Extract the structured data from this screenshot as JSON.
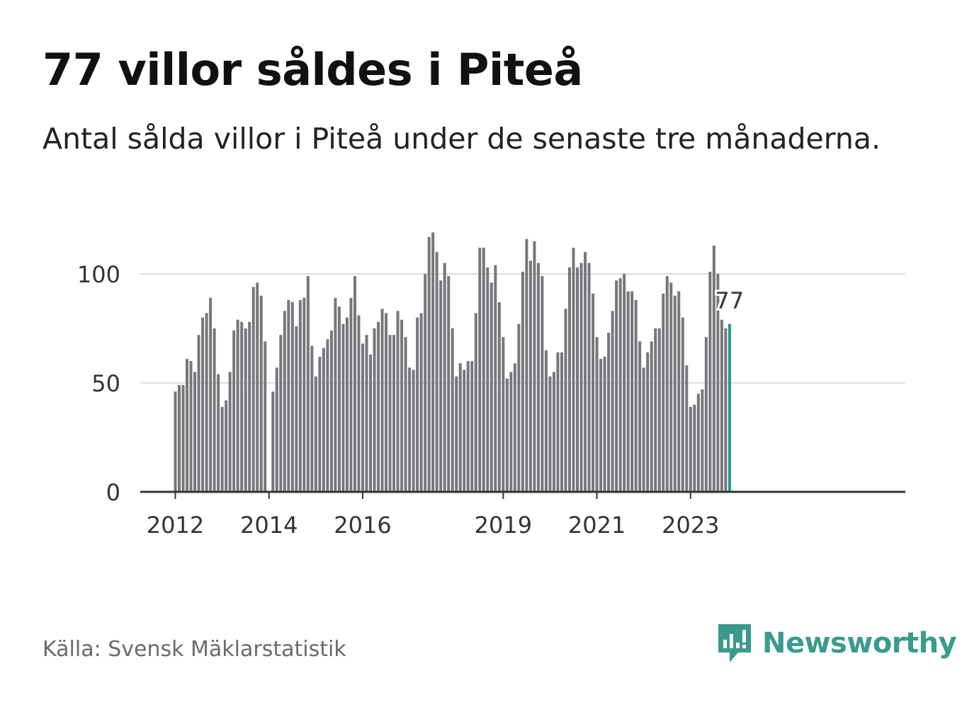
{
  "header": {
    "title": "77 villor såldes i Piteå",
    "subtitle": "Antal sålda villor i Piteå under de senaste tre månaderna."
  },
  "footer": {
    "source": "Källa: Svensk Mäklarstatistik",
    "brand": "Newsworthy"
  },
  "colors": {
    "bar": "#77767b",
    "highlight": "#1a9a8e",
    "grid": "#dddddd",
    "axis": "#333333",
    "brand": "#3a9a8f"
  },
  "chart_data": {
    "type": "bar",
    "title": "77 villor såldes i Piteå",
    "xlabel": "",
    "ylabel": "",
    "ylim": [
      0,
      125
    ],
    "yticks": [
      0,
      50,
      100
    ],
    "grid": true,
    "series": [
      {
        "name": "Antal sålda villor (rullande tre månader)",
        "start": "2012-01",
        "values": [
          46,
          49,
          49,
          61,
          60,
          55,
          72,
          80,
          82,
          89,
          75,
          54,
          39,
          42,
          55,
          74,
          79,
          78,
          75,
          78,
          94,
          96,
          90,
          69,
          null,
          46,
          57,
          72,
          83,
          88,
          87,
          76,
          88,
          89,
          99,
          67,
          53,
          62,
          66,
          70,
          74,
          89,
          85,
          77,
          80,
          89,
          99,
          81,
          68,
          72,
          63,
          75,
          78,
          84,
          82,
          72,
          72,
          83,
          79,
          71,
          57,
          56,
          80,
          82,
          100,
          117,
          119,
          110,
          97,
          105,
          99,
          75,
          53,
          59,
          56,
          60,
          60,
          82,
          112,
          112,
          103,
          96,
          104,
          87,
          71,
          52,
          55,
          59,
          77,
          101,
          116,
          106,
          115,
          105,
          99,
          65,
          53,
          55,
          64,
          64,
          84,
          103,
          112,
          103,
          105,
          110,
          105,
          91,
          71,
          61,
          62,
          73,
          83,
          97,
          98,
          100,
          92,
          92,
          88,
          69,
          57,
          64,
          69,
          75,
          75,
          91,
          99,
          96,
          90,
          92,
          80,
          58,
          39,
          40,
          45,
          47,
          71,
          101,
          113,
          100,
          79,
          75,
          77
        ]
      }
    ],
    "x_ticks": [
      {
        "label": "2012",
        "index": 0
      },
      {
        "label": "2014",
        "index": 24
      },
      {
        "label": "2016",
        "index": 48
      },
      {
        "label": "2019",
        "index": 84
      },
      {
        "label": "2021",
        "index": 108
      },
      {
        "label": "2023",
        "index": 132
      }
    ],
    "highlight": {
      "label": "77",
      "value": 77
    }
  }
}
